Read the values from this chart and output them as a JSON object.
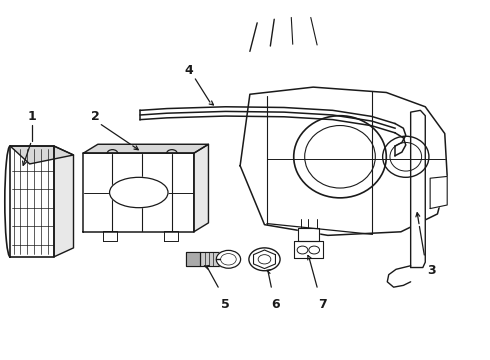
{
  "background_color": "#ffffff",
  "line_color": "#1a1a1a",
  "figsize": [
    4.9,
    3.6
  ],
  "dpi": 100
}
